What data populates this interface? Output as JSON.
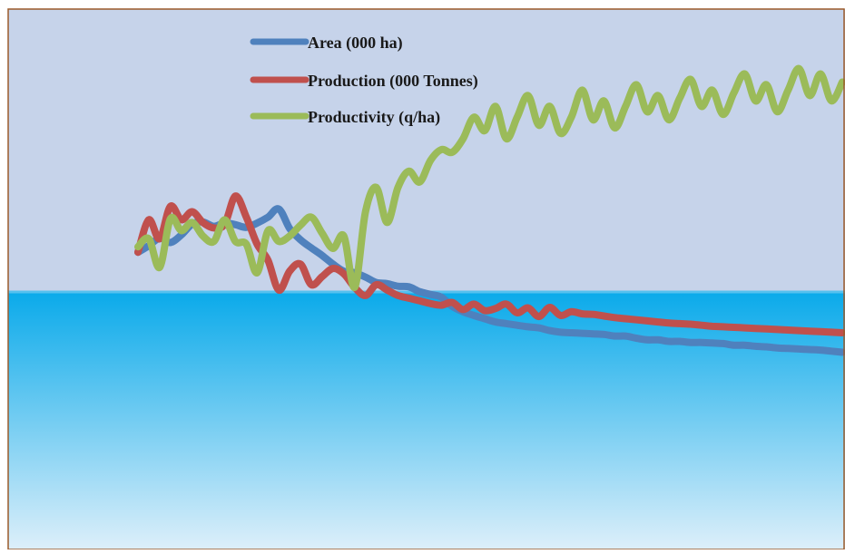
{
  "chart_data": {
    "type": "line",
    "title": "",
    "xlabel": "",
    "ylabel": "",
    "x_index": [
      0,
      1,
      2,
      3,
      4,
      5,
      6,
      7,
      8,
      9,
      10,
      11,
      12,
      13,
      14,
      15,
      16,
      17,
      18,
      19,
      20,
      21,
      22,
      23,
      24,
      25,
      26,
      27,
      28,
      29,
      30,
      31,
      32,
      33,
      34,
      35,
      36,
      37,
      38,
      39,
      40,
      41,
      42,
      43,
      44,
      45,
      46,
      47,
      48,
      49,
      50,
      51,
      52,
      53,
      54,
      55,
      56,
      57,
      58,
      59,
      60,
      61,
      62,
      63,
      64,
      65
    ],
    "ylim": [
      0,
      100
    ],
    "legend_position": "top-left",
    "background": {
      "top_color": "#c6d3ea",
      "lower_band_top": "#0aaaea",
      "lower_band_bottom": "#ddeffa",
      "border_color": "#9b5a2a",
      "divider_color": "#55c1ee"
    },
    "series": [
      {
        "name": "Area (000 ha)",
        "color": "#4f81bd",
        "values": [
          55.0,
          56.2,
          57.6,
          56.8,
          58.2,
          60.2,
          60.6,
          59.8,
          60.4,
          60.1,
          59.6,
          60.4,
          61.5,
          63.0,
          59.4,
          57.3,
          55.8,
          54.4,
          52.8,
          51.5,
          51.2,
          50.4,
          49.4,
          49.2,
          48.7,
          48.6,
          47.7,
          47.2,
          46.7,
          45.0,
          44.0,
          43.3,
          42.7,
          42.1,
          41.8,
          41.5,
          41.2,
          41.0,
          40.5,
          40.2,
          40.1,
          40.0,
          39.9,
          39.8,
          39.5,
          39.5,
          39.1,
          38.8,
          38.8,
          38.5,
          38.5,
          38.3,
          38.3,
          38.2,
          38.1,
          37.8,
          37.8,
          37.6,
          37.5,
          37.3,
          37.2,
          37.1,
          37.0,
          36.9,
          36.7,
          36.5
        ],
        "labels": []
      },
      {
        "name": "Production (000 Tonnes)",
        "color": "#c0504d",
        "values": [
          55.0,
          61.0,
          57.5,
          63.5,
          61.0,
          62.5,
          60.5,
          59.5,
          60.2,
          65.4,
          61.5,
          56.5,
          53.5,
          48.0,
          51.5,
          52.8,
          49.0,
          50.5,
          52.0,
          51.0,
          48.5,
          47.0,
          49.0,
          48.0,
          47.0,
          46.5,
          46.0,
          45.5,
          45.2,
          45.7,
          44.4,
          45.4,
          44.2,
          44.6,
          45.4,
          43.8,
          44.7,
          43.1,
          44.8,
          43.3,
          44.0,
          43.6,
          43.5,
          43.2,
          42.9,
          42.7,
          42.5,
          42.3,
          42.1,
          41.9,
          41.8,
          41.7,
          41.5,
          41.3,
          41.2,
          41.1,
          41.0,
          40.9,
          40.8,
          40.7,
          40.6,
          40.5,
          40.4,
          40.3,
          40.2,
          40.1
        ],
        "labels": []
      },
      {
        "name": "Productivity (q/ha)",
        "color": "#9bbb59",
        "values": [
          56.0,
          57.5,
          52.2,
          61.2,
          59.0,
          60.5,
          58.0,
          57.0,
          61.0,
          57.0,
          56.5,
          51.2,
          59.0,
          57.0,
          58.0,
          60.0,
          61.5,
          58.5,
          55.7,
          58.0,
          48.5,
          62.5,
          67.0,
          60.5,
          67.0,
          70.0,
          68.0,
          72.0,
          74.0,
          73.5,
          76.0,
          80.0,
          77.5,
          82.0,
          76.0,
          80.0,
          84.0,
          78.5,
          82.0,
          77.0,
          80.0,
          85.0,
          79.5,
          83.0,
          78.0,
          82.0,
          86.0,
          81.0,
          84.0,
          79.5,
          83.5,
          87.0,
          82.0,
          85.0,
          80.5,
          84.5,
          88.0,
          83.0,
          86.0,
          81.0,
          85.0,
          89.0,
          84.0,
          88.0,
          83.0,
          86.5
        ],
        "labels": []
      }
    ]
  }
}
